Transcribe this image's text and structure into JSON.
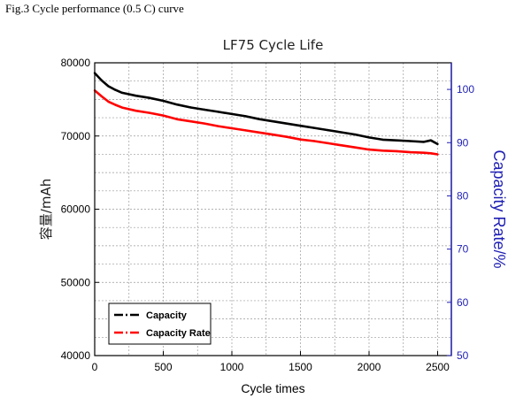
{
  "caption": "Fig.3 Cycle performance (0.5 C) curve",
  "chart_data": {
    "type": "line",
    "title": "LF75 Cycle Life",
    "xlabel": "Cycle times",
    "ylabel_left": "容量/mAh",
    "ylabel_right": "Capacity Rate/%",
    "xlim": [
      0,
      2600
    ],
    "ylim_left": [
      40000,
      80000
    ],
    "ylim_right": [
      50,
      105
    ],
    "x_ticks": [
      0,
      500,
      1000,
      1500,
      2000,
      2500
    ],
    "y_left_ticks": [
      40000,
      50000,
      60000,
      70000,
      80000
    ],
    "y_right_ticks": [
      50,
      60,
      70,
      80,
      90,
      100
    ],
    "grid": true,
    "legend_position": "bottom-left",
    "series": [
      {
        "name": "Capacity",
        "axis": "left",
        "color": "#000000",
        "x": [
          0,
          50,
          100,
          150,
          200,
          300,
          400,
          500,
          600,
          700,
          800,
          900,
          1000,
          1100,
          1200,
          1300,
          1400,
          1500,
          1600,
          1700,
          1800,
          1900,
          2000,
          2100,
          2200,
          2300,
          2400,
          2450,
          2500
        ],
        "y": [
          78600,
          77600,
          76800,
          76300,
          75900,
          75500,
          75200,
          74800,
          74300,
          73900,
          73600,
          73300,
          73000,
          72700,
          72300,
          72000,
          71700,
          71400,
          71100,
          70800,
          70500,
          70200,
          69800,
          69500,
          69400,
          69300,
          69200,
          69400,
          68900
        ]
      },
      {
        "name": "Capacity Rate",
        "axis": "right",
        "color": "#ff0000",
        "x": [
          0,
          50,
          100,
          150,
          200,
          300,
          400,
          500,
          600,
          700,
          800,
          900,
          1000,
          1100,
          1200,
          1300,
          1400,
          1500,
          1600,
          1700,
          1800,
          1900,
          2000,
          2100,
          2200,
          2300,
          2400,
          2450,
          2500
        ],
        "y": [
          99.8,
          98.7,
          97.7,
          97.1,
          96.6,
          96.0,
          95.6,
          95.1,
          94.4,
          94.0,
          93.6,
          93.1,
          92.7,
          92.3,
          91.9,
          91.5,
          91.1,
          90.6,
          90.3,
          89.9,
          89.5,
          89.1,
          88.7,
          88.5,
          88.4,
          88.2,
          88.1,
          88.0,
          87.8
        ]
      }
    ]
  }
}
